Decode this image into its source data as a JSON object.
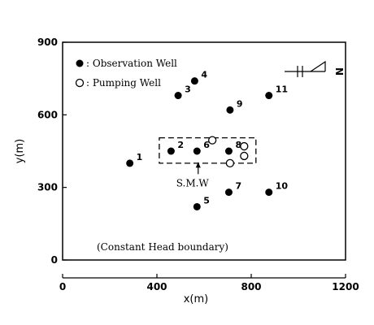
{
  "chart_data": {
    "type": "scatter",
    "xlabel": "x(m)",
    "ylabel": "y(m)",
    "xlim": [
      0,
      1200
    ],
    "ylim": [
      0,
      900
    ],
    "x_ticks": [
      0,
      400,
      800,
      1200
    ],
    "y_ticks": [
      0,
      300,
      600,
      900
    ],
    "legend": [
      {
        "marker": "filled",
        "label": ": Observation Well"
      },
      {
        "marker": "open",
        "label": ": Pumping Well"
      }
    ],
    "observation_wells": [
      {
        "label": "1",
        "x": 285,
        "y": 400
      },
      {
        "label": "2",
        "x": 460,
        "y": 450
      },
      {
        "label": "3",
        "x": 490,
        "y": 680
      },
      {
        "label": "4",
        "x": 560,
        "y": 740
      },
      {
        "label": "5",
        "x": 570,
        "y": 220
      },
      {
        "label": "6",
        "x": 570,
        "y": 450
      },
      {
        "label": "7",
        "x": 705,
        "y": 280
      },
      {
        "label": "8",
        "x": 705,
        "y": 450
      },
      {
        "label": "9",
        "x": 710,
        "y": 620
      },
      {
        "label": "10",
        "x": 875,
        "y": 280
      },
      {
        "label": "11",
        "x": 875,
        "y": 680
      }
    ],
    "pumping_wells": [
      {
        "x": 635,
        "y": 495
      },
      {
        "x": 710,
        "y": 400
      },
      {
        "x": 770,
        "y": 470
      },
      {
        "x": 770,
        "y": 430
      }
    ],
    "annotations": {
      "smw_label": "S.M.W",
      "boundary_label": "(Constant Head boundary)",
      "north_label": "N"
    },
    "smw_box": {
      "x": [
        410,
        820
      ],
      "y": [
        400,
        505
      ]
    },
    "smw_arrow": {
      "from": [
        575,
        355
      ],
      "to": [
        575,
        405
      ]
    },
    "grid": false,
    "legend_position": "top-left"
  }
}
